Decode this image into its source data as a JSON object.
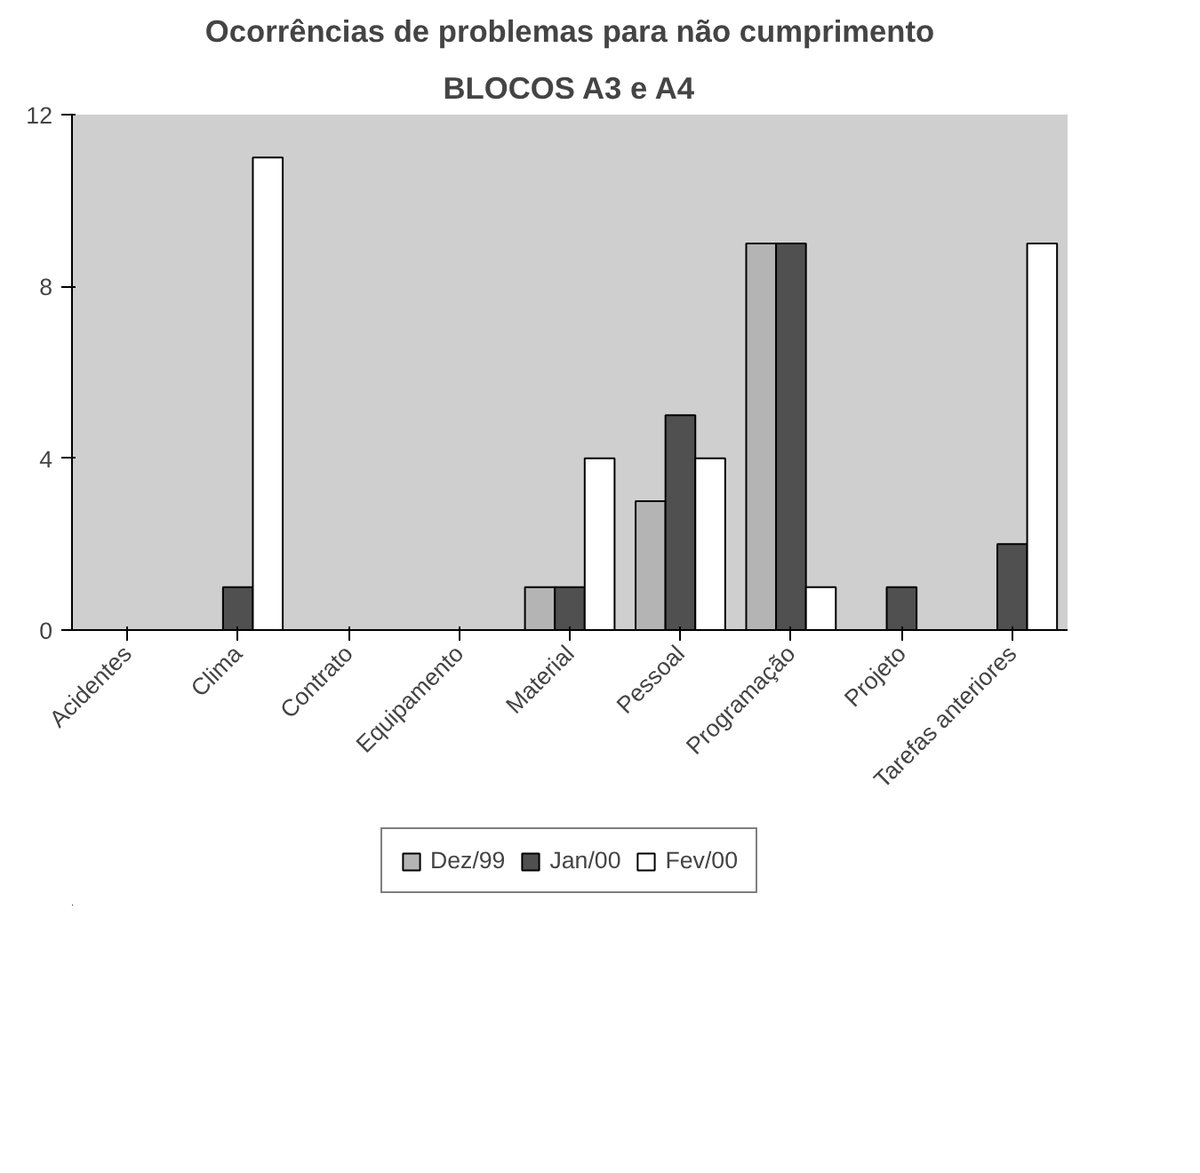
{
  "chart_data": {
    "type": "bar",
    "title": "Ocorrências de problemas para não cumprimento",
    "subtitle": "BLOCOS A3 e A4",
    "categories": [
      "Acidentes",
      "Clima",
      "Contrato",
      "Equipamento",
      "Material",
      "Pessoal",
      "Programação",
      "Projeto",
      "Tarefas anteriores"
    ],
    "series": [
      {
        "name": "Dez/99",
        "color": "#b4b4b4",
        "values": [
          0,
          0,
          0,
          0,
          1,
          3,
          9,
          0,
          0
        ]
      },
      {
        "name": "Jan/00",
        "color": "#505050",
        "values": [
          0,
          1,
          0,
          0,
          1,
          5,
          9,
          1,
          2
        ]
      },
      {
        "name": "Fev/00",
        "color": "#ffffff",
        "values": [
          0,
          11,
          0,
          0,
          4,
          4,
          1,
          0,
          9
        ]
      }
    ],
    "ylim": [
      0,
      12
    ],
    "yticks": [
      0,
      4,
      8,
      12
    ],
    "grid": false,
    "legend": "bottom"
  }
}
